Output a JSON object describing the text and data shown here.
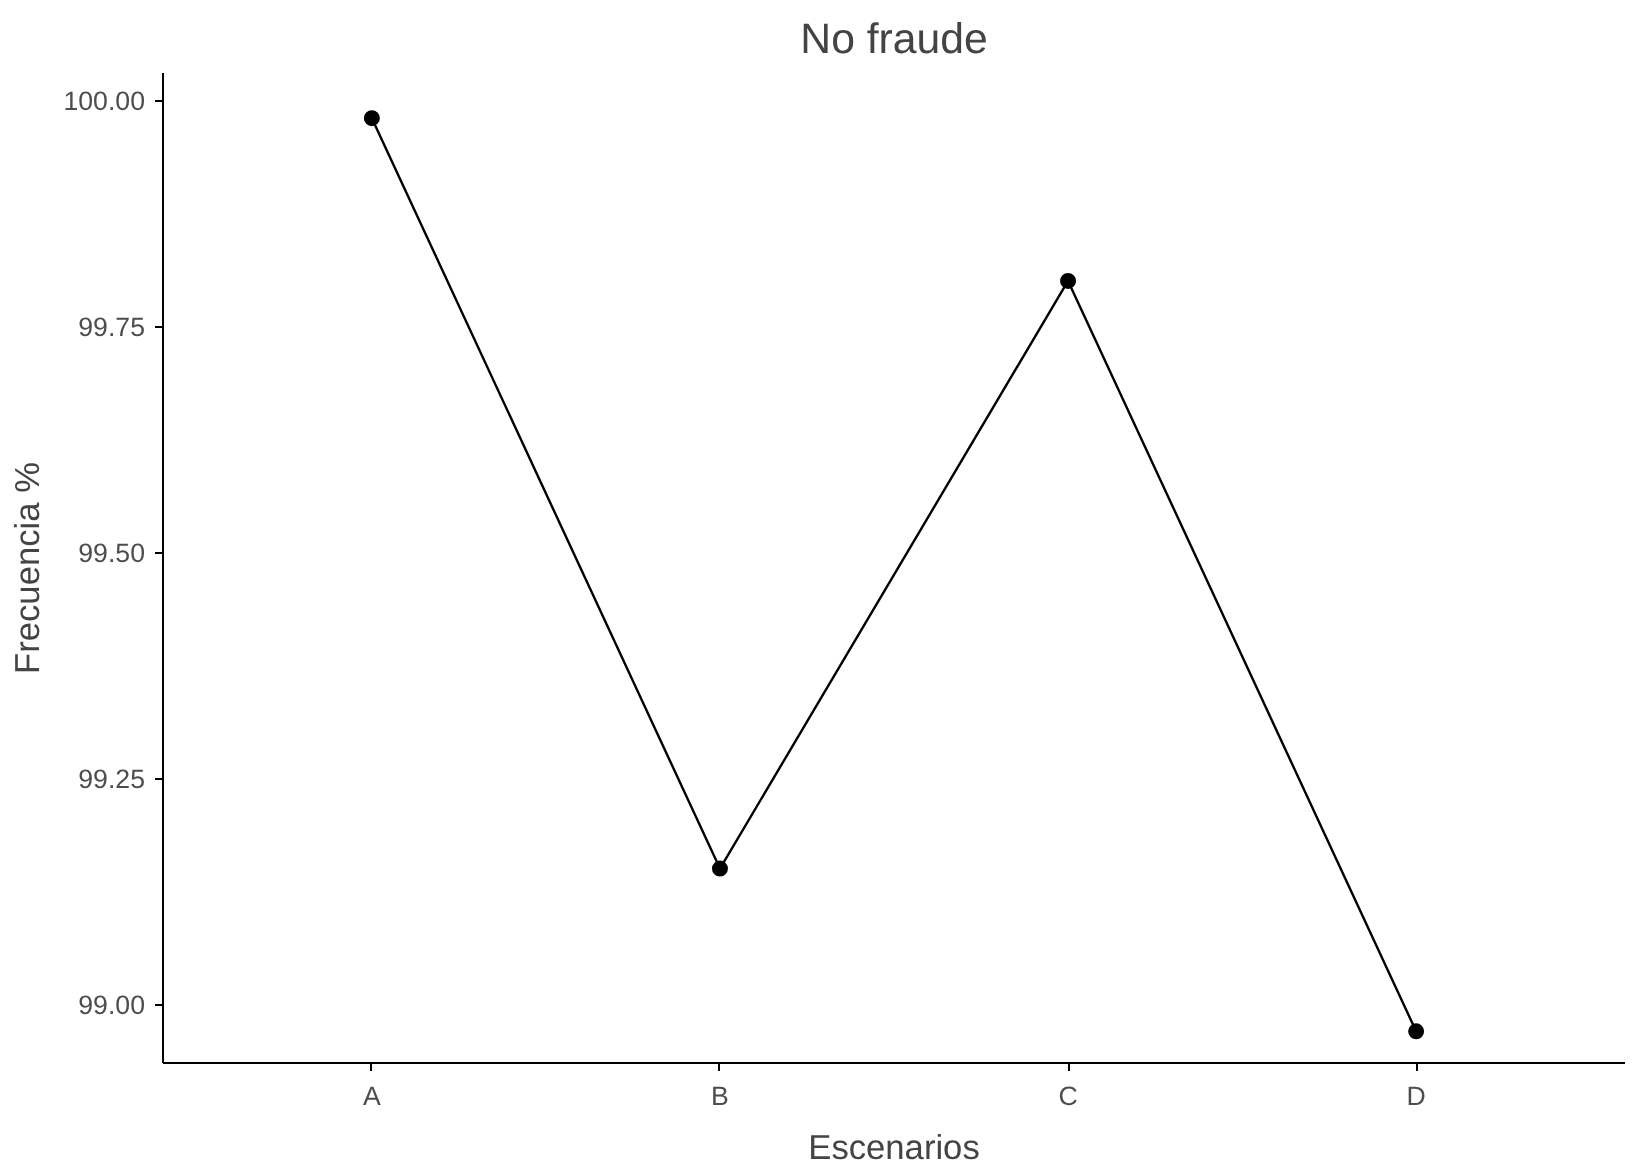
{
  "chart_data": {
    "type": "line",
    "title": "No fraude",
    "xlabel": "Escenarios",
    "ylabel": "Frecuencia %",
    "categories": [
      "A",
      "B",
      "C",
      "D"
    ],
    "series": [
      {
        "color": "#000000",
        "values": [
          99.98,
          99.15,
          99.8,
          98.97
        ]
      }
    ],
    "ylim": [
      98.935,
      100.03
    ],
    "yticks": [
      {
        "value": 99.0,
        "label": "99.00"
      },
      {
        "value": 99.25,
        "label": "99.25"
      },
      {
        "value": 99.5,
        "label": "99.50"
      },
      {
        "value": 99.75,
        "label": "99.75"
      },
      {
        "value": 100.0,
        "label": "100.00"
      }
    ],
    "grid": false,
    "marker": "circle",
    "line_style": "solid"
  }
}
